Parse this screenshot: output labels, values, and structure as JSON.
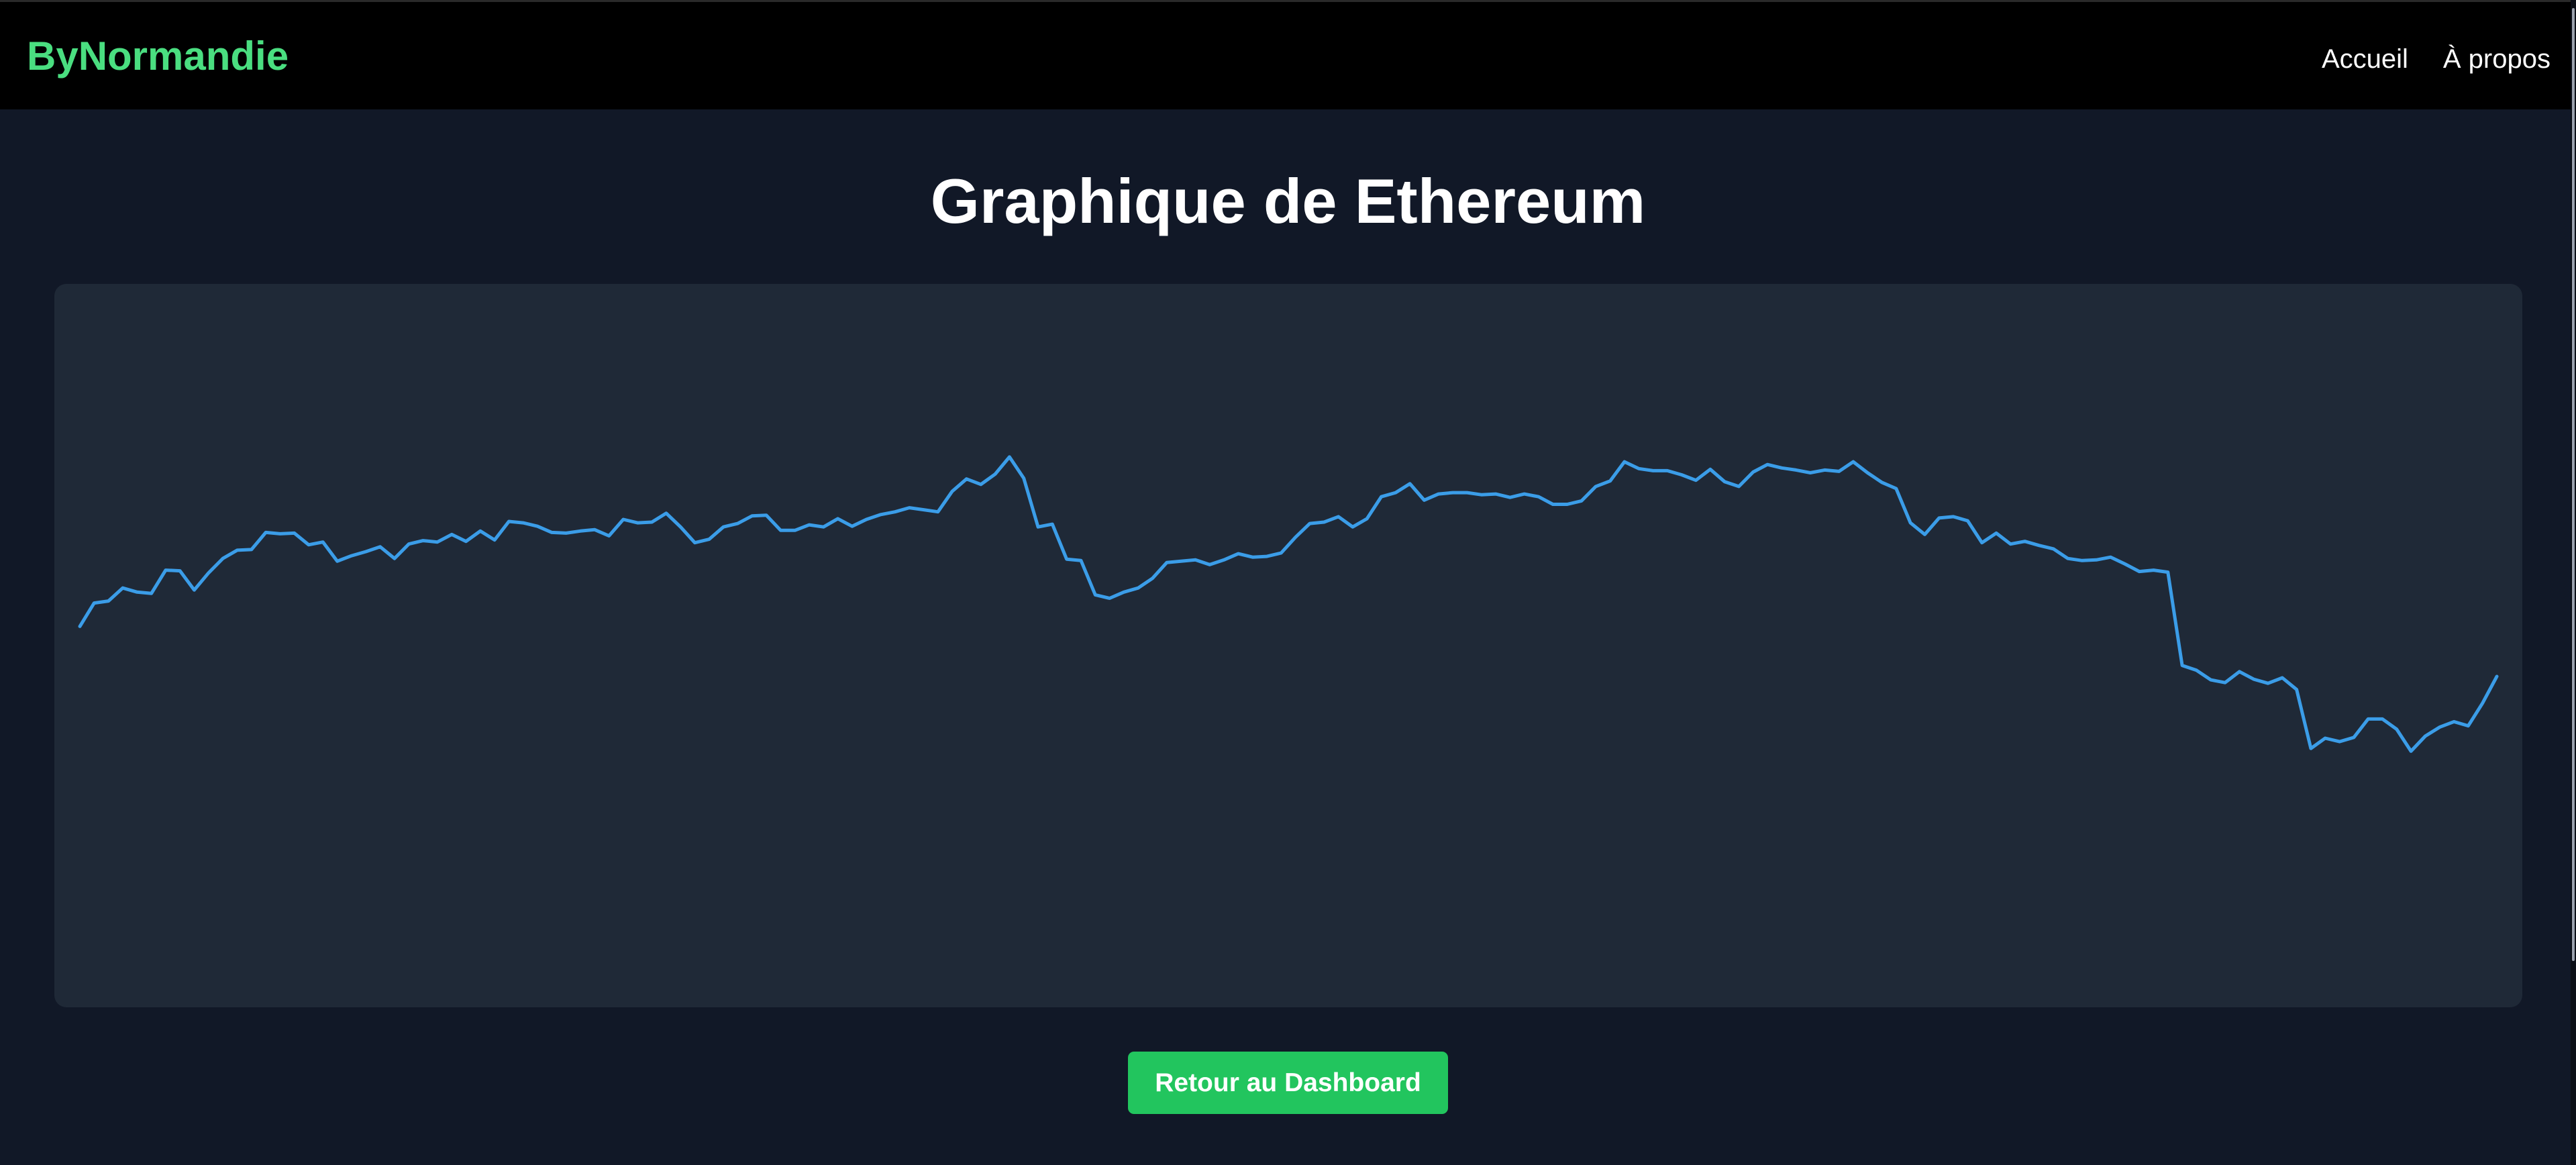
{
  "header": {
    "brand": "ByNormandie",
    "nav": [
      {
        "label": "Accueil"
      },
      {
        "label": "À propos"
      }
    ]
  },
  "main": {
    "title": "Graphique de Ethereum",
    "back_button_label": "Retour au Dashboard"
  },
  "colors": {
    "brand": "#4ade80",
    "line": "#3b9de8",
    "button": "#22c55e",
    "card": "#1f2937",
    "background": "#111827",
    "navbar": "#000000"
  },
  "chart_data": {
    "type": "line",
    "title": "",
    "xlabel": "",
    "ylabel": "",
    "grid": false,
    "legend": "none",
    "ylim": [
      0,
      100
    ],
    "series": [
      {
        "values": [
          52.8,
          56.2,
          56.5,
          58.4,
          57.8,
          57.6,
          61.0,
          60.9,
          58.1,
          60.6,
          62.7,
          63.9,
          64.0,
          66.5,
          66.3,
          66.4,
          64.7,
          65.1,
          62.3,
          63.1,
          63.7,
          64.4,
          62.7,
          64.8,
          65.3,
          65.1,
          66.2,
          65.2,
          66.7,
          65.4,
          68.1,
          67.9,
          67.4,
          66.5,
          66.4,
          66.7,
          66.9,
          66.0,
          68.4,
          67.9,
          68.0,
          69.3,
          67.3,
          65.0,
          65.5,
          67.3,
          67.8,
          68.9,
          69.0,
          66.8,
          66.8,
          67.6,
          67.3,
          68.5,
          67.4,
          68.4,
          69.1,
          69.5,
          70.1,
          69.8,
          69.5,
          72.5,
          74.3,
          73.5,
          75.0,
          77.5,
          74.4,
          67.3,
          67.7,
          62.6,
          62.4,
          57.4,
          56.9,
          57.8,
          58.4,
          59.8,
          62.1,
          62.3,
          62.5,
          61.8,
          62.5,
          63.4,
          62.9,
          63.0,
          63.5,
          65.8,
          67.8,
          68.0,
          68.8,
          67.3,
          68.5,
          71.7,
          72.3,
          73.6,
          71.2,
          72.1,
          72.3,
          72.3,
          72.0,
          72.1,
          71.6,
          72.1,
          71.7,
          70.6,
          70.6,
          71.1,
          73.2,
          74.0,
          76.8,
          75.8,
          75.5,
          75.5,
          74.9,
          74.1,
          75.7,
          73.9,
          73.2,
          75.3,
          76.4,
          75.9,
          75.6,
          75.2,
          75.6,
          75.4,
          76.8,
          75.2,
          73.8,
          72.9,
          67.9,
          66.2,
          68.6,
          68.8,
          68.2,
          65.0,
          66.4,
          64.8,
          65.2,
          64.6,
          64.1,
          62.7,
          62.4,
          62.5,
          62.9,
          61.9,
          60.8,
          61.0,
          60.7,
          47.1,
          46.4,
          45.0,
          44.6,
          46.2,
          45.1,
          44.5,
          45.3,
          43.6,
          35.0,
          36.5,
          36.0,
          36.6,
          39.3,
          39.3,
          37.8,
          34.6,
          36.8,
          38.1,
          38.9,
          38.3,
          41.6,
          45.5
        ]
      }
    ]
  }
}
